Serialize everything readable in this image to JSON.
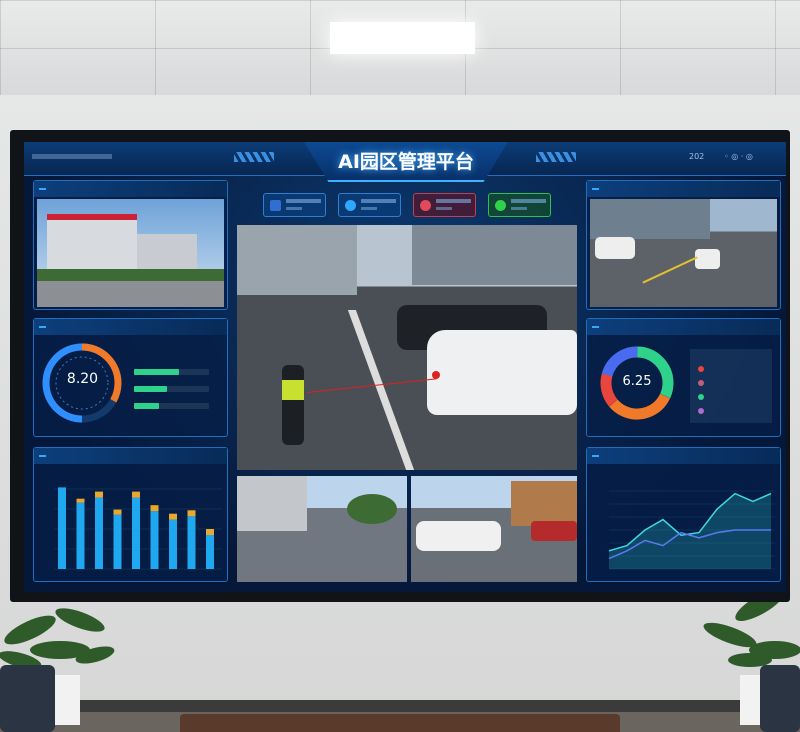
{
  "dashboard": {
    "title": "AI园区管理平台",
    "date_fragment": "202"
  },
  "left_gauge": {
    "value": "8.20",
    "progress": [
      0.62,
      0.45,
      0.33
    ]
  },
  "right_donut": {
    "value": "6.25",
    "legend_colors": [
      "#e8453c",
      "#c0607a",
      "#2fd28a",
      "#b06ad0"
    ]
  },
  "bar_chart": {
    "values": [
      96,
      78,
      84,
      64,
      84,
      68,
      58,
      62,
      40
    ],
    "caps": [
      0,
      4,
      6,
      5,
      6,
      6,
      6,
      6,
      6
    ]
  },
  "line_chart": {
    "series1": [
      14,
      18,
      30,
      38,
      26,
      28,
      46,
      58,
      52,
      58
    ],
    "series2": [
      8,
      14,
      22,
      18,
      28,
      24,
      28,
      30,
      30,
      30
    ]
  },
  "status_colors": [
    "#e8453c",
    "#2fa6ff",
    "#e04a5a",
    "#2fd24a"
  ]
}
